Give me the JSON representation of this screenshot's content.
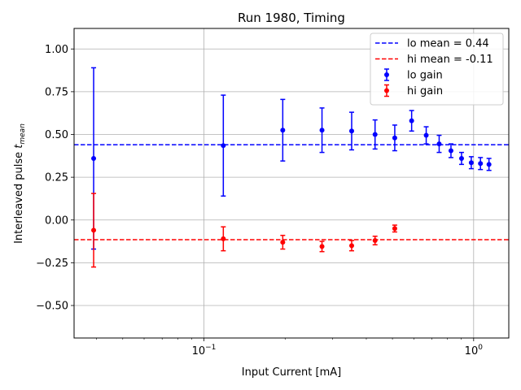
{
  "chart_data": {
    "type": "scatter",
    "title": "Run 1980, Timing",
    "xlabel": "Input Current [mA]",
    "ylabel": "Interleaved pulse t_mean",
    "ylabel_main": "Interleaved pulse ",
    "ylabel_sym": "t",
    "ylabel_sub": "mean",
    "xscale": "log",
    "xlim": [
      0.033,
      1.35
    ],
    "ylim": [
      -0.69,
      1.12
    ],
    "grid": true,
    "legend_loc": "top-right",
    "x_ticks": [
      {
        "value": 0.1,
        "base": "10",
        "exp": "−1"
      },
      {
        "value": 1,
        "base": "10",
        "exp": "0"
      }
    ],
    "y_ticks": [
      {
        "value": 1.0,
        "label": "1.00"
      },
      {
        "value": 0.75,
        "label": "0.75"
      },
      {
        "value": 0.5,
        "label": "0.50"
      },
      {
        "value": 0.25,
        "label": "0.25"
      },
      {
        "value": 0.0,
        "label": "0.00"
      },
      {
        "value": -0.25,
        "label": "−0.25"
      },
      {
        "value": -0.5,
        "label": "−0.50"
      }
    ],
    "hlines": [
      {
        "name": "lo mean = 0.44",
        "y": 0.44,
        "color": "#0000ff"
      },
      {
        "name": "hi mean = -0.11",
        "y": -0.115,
        "color": "#ff0000"
      }
    ],
    "series": [
      {
        "name": "lo gain",
        "color": "#0000ff",
        "x": [
          0.039,
          0.118,
          0.196,
          0.274,
          0.353,
          0.431,
          0.51,
          0.589,
          0.667,
          0.745,
          0.824,
          0.902,
          0.98,
          1.06,
          1.14
        ],
        "y": [
          0.36,
          0.435,
          0.525,
          0.525,
          0.52,
          0.5,
          0.48,
          0.58,
          0.495,
          0.445,
          0.405,
          0.36,
          0.335,
          0.33,
          0.325
        ],
        "err": [
          0.53,
          0.295,
          0.18,
          0.13,
          0.11,
          0.085,
          0.075,
          0.06,
          0.05,
          0.05,
          0.04,
          0.035,
          0.035,
          0.035,
          0.035
        ]
      },
      {
        "name": "hi gain",
        "color": "#ff0000",
        "x": [
          0.039,
          0.118,
          0.196,
          0.274,
          0.353,
          0.431,
          0.51
        ],
        "y": [
          -0.06,
          -0.11,
          -0.13,
          -0.155,
          -0.15,
          -0.12,
          -0.05
        ],
        "err": [
          0.215,
          0.07,
          0.04,
          0.03,
          0.03,
          0.025,
          0.02
        ]
      }
    ]
  }
}
